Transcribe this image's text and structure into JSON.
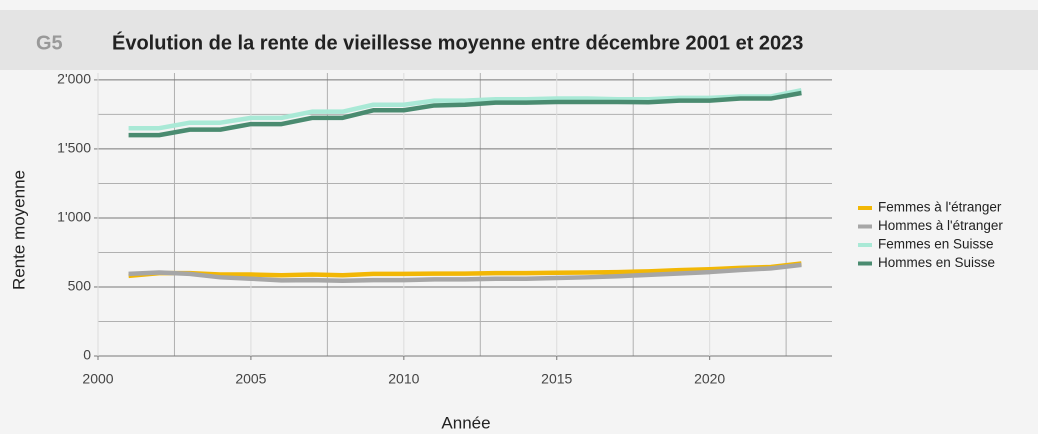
{
  "chart_data": {
    "type": "line",
    "label": "G5",
    "title": "Évolution de la rente de vieillesse moyenne entre décembre 2001 et 2023",
    "x_label": "Année",
    "y_label": "Rente moyenne",
    "x": [
      2001,
      2002,
      2003,
      2004,
      2005,
      2006,
      2007,
      2008,
      2009,
      2010,
      2011,
      2012,
      2013,
      2014,
      2015,
      2016,
      2017,
      2018,
      2019,
      2020,
      2021,
      2022,
      2023
    ],
    "series": [
      {
        "name": "Femmes à l'étranger",
        "color": "#f2b705",
        "values": [
          580,
          600,
          600,
          590,
          590,
          585,
          590,
          585,
          595,
          595,
          597,
          597,
          600,
          600,
          603,
          605,
          608,
          613,
          622,
          628,
          638,
          645,
          670
        ]
      },
      {
        "name": "Hommes à l'étranger",
        "color": "#a6a6a6",
        "values": [
          595,
          605,
          595,
          570,
          560,
          548,
          550,
          545,
          550,
          550,
          555,
          555,
          560,
          560,
          565,
          570,
          578,
          588,
          598,
          608,
          623,
          635,
          660
        ]
      },
      {
        "name": "Femmes en Suisse",
        "color": "#a9e9d6",
        "values": [
          1650,
          1650,
          1690,
          1690,
          1725,
          1725,
          1770,
          1770,
          1820,
          1820,
          1850,
          1850,
          1860,
          1860,
          1865,
          1865,
          1860,
          1860,
          1870,
          1870,
          1880,
          1880,
          1925
        ]
      },
      {
        "name": "Hommes en Suisse",
        "color": "#4a8b70",
        "values": [
          1600,
          1600,
          1640,
          1640,
          1680,
          1680,
          1725,
          1725,
          1780,
          1780,
          1815,
          1820,
          1835,
          1835,
          1840,
          1840,
          1840,
          1838,
          1850,
          1850,
          1865,
          1865,
          1905
        ]
      }
    ],
    "xlim": [
      2000,
      2024
    ],
    "xticks": [
      2000,
      2005,
      2010,
      2015,
      2020
    ],
    "x_minor_ticks": [
      2002.5,
      2007.5,
      2012.5,
      2017.5,
      2022.5
    ],
    "ylim": [
      0,
      2050
    ],
    "yticks": [
      0,
      500,
      {
        "value": 1000,
        "label": "1'000"
      },
      {
        "value": 1500,
        "label": "1'500"
      },
      {
        "value": 2000,
        "label": "2'000"
      }
    ],
    "y_minor_ticks": [
      250,
      750,
      1250,
      1750
    ],
    "grid": true,
    "legend": "right"
  }
}
